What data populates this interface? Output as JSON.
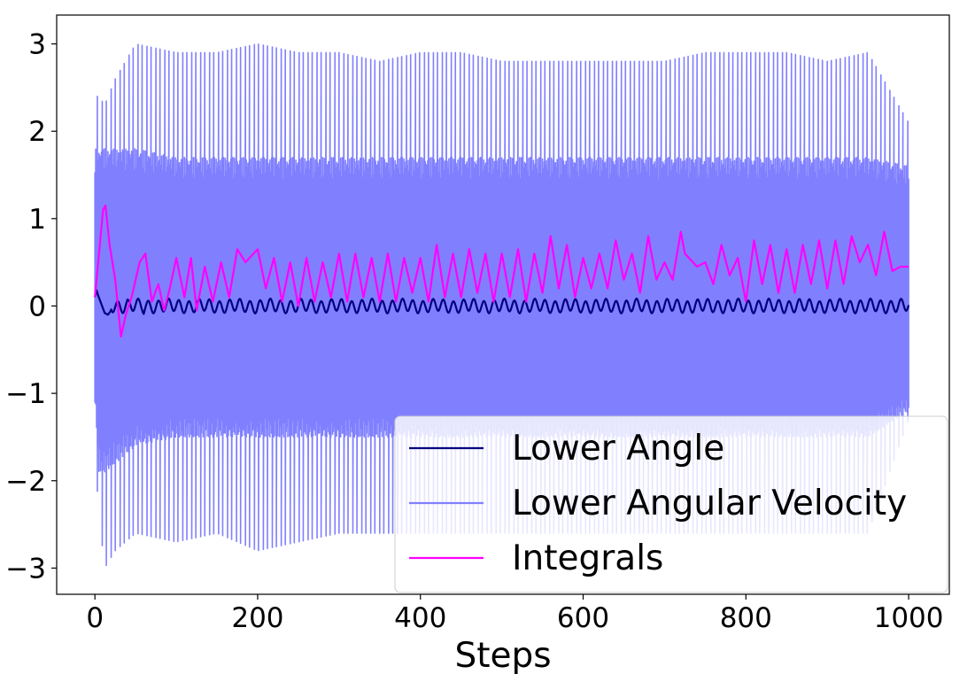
{
  "chart_data": {
    "type": "line",
    "title": "",
    "xlabel": "Steps",
    "ylabel": "",
    "xlim": [
      -47,
      1050
    ],
    "ylim": [
      -3.3,
      3.33
    ],
    "x_ticks": [
      0,
      200,
      400,
      600,
      800,
      1000
    ],
    "x_tick_labels": [
      "0",
      "200",
      "400",
      "600",
      "800",
      "1000"
    ],
    "y_ticks": [
      -3,
      -2,
      -1,
      0,
      1,
      2,
      3
    ],
    "y_tick_labels": [
      "−3",
      "−2",
      "−1",
      "0",
      "1",
      "2",
      "3"
    ],
    "grid": false,
    "legend_position": "lower-right",
    "series": [
      {
        "name": "Lower Angle",
        "color": "#000080",
        "style": "oscillation",
        "x": [
          0,
          2,
          4,
          8,
          12,
          16,
          20,
          30,
          40,
          50,
          60,
          70,
          80,
          100,
          150,
          200,
          250,
          300,
          400,
          500,
          600,
          700,
          800,
          900,
          1000
        ],
        "values": [
          0.1,
          0.18,
          0.12,
          0.02,
          -0.08,
          -0.1,
          -0.05,
          0.05,
          -0.08,
          0.06,
          -0.1,
          0.06,
          -0.08,
          0.05,
          -0.06,
          0.08,
          -0.07,
          0.07,
          -0.05,
          0.06,
          -0.06,
          0.07,
          -0.06,
          0.05,
          -0.03
        ]
      },
      {
        "name": "Lower Angular Velocity",
        "color": "#8080ff",
        "style": "dense",
        "x": [
          0,
          5,
          12,
          25,
          50,
          100,
          150,
          200,
          250,
          300,
          350,
          400,
          450,
          500,
          550,
          600,
          650,
          700,
          750,
          800,
          850,
          900,
          950,
          1000
        ],
        "max": [
          2.4,
          2.4,
          2.3,
          2.6,
          3.0,
          2.9,
          2.9,
          3.0,
          2.9,
          2.9,
          2.8,
          2.9,
          2.9,
          2.8,
          2.8,
          2.8,
          2.8,
          2.8,
          2.9,
          2.9,
          2.9,
          2.8,
          2.9,
          2.1
        ],
        "min": [
          -1.7,
          -2.4,
          -3.0,
          -2.8,
          -2.6,
          -2.7,
          -2.6,
          -2.8,
          -2.7,
          -2.6,
          -2.6,
          -2.6,
          -2.6,
          -2.6,
          -2.6,
          -2.6,
          -2.6,
          -2.6,
          -2.6,
          -2.6,
          -2.6,
          -2.6,
          -2.6,
          -1.3
        ],
        "spike_period": 11,
        "core_max": [
          1.8,
          1.8,
          1.8,
          1.8,
          1.8,
          1.7,
          1.7,
          1.7,
          1.7,
          1.7,
          1.7,
          1.7,
          1.7,
          1.7,
          1.7,
          1.7,
          1.7,
          1.7,
          1.7,
          1.7,
          1.7,
          1.7,
          1.7,
          1.6
        ],
        "core_min": [
          -1.1,
          -1.9,
          -1.9,
          -1.8,
          -1.6,
          -1.5,
          -1.5,
          -1.5,
          -1.5,
          -1.5,
          -1.5,
          -1.5,
          -1.5,
          -1.5,
          -1.5,
          -1.5,
          -1.5,
          -1.5,
          -1.5,
          -1.5,
          -1.5,
          -1.5,
          -1.5,
          -1.2
        ]
      },
      {
        "name": "Integrals",
        "color": "#ff00ff",
        "style": "line",
        "x": [
          0,
          5,
          10,
          13,
          18,
          25,
          32,
          38,
          45,
          55,
          62,
          70,
          78,
          85,
          92,
          100,
          110,
          118,
          125,
          135,
          145,
          155,
          165,
          175,
          185,
          195,
          200,
          210,
          220,
          230,
          240,
          250,
          260,
          270,
          280,
          290,
          300,
          310,
          320,
          330,
          340,
          350,
          360,
          370,
          380,
          390,
          400,
          410,
          420,
          430,
          440,
          450,
          460,
          470,
          480,
          490,
          500,
          510,
          520,
          530,
          540,
          550,
          560,
          570,
          580,
          590,
          600,
          610,
          620,
          630,
          640,
          650,
          660,
          670,
          680,
          690,
          700,
          710,
          720,
          725,
          730,
          740,
          750,
          760,
          770,
          780,
          790,
          800,
          810,
          820,
          830,
          840,
          850,
          860,
          870,
          880,
          890,
          900,
          910,
          920,
          930,
          940,
          950,
          960,
          970,
          980,
          990,
          1000
        ],
        "values": [
          0.1,
          0.6,
          1.1,
          1.15,
          0.7,
          0.3,
          -0.35,
          -0.1,
          0.1,
          0.5,
          0.6,
          0.05,
          0.25,
          -0.05,
          0.2,
          0.55,
          0.1,
          0.55,
          -0.05,
          0.45,
          0.05,
          0.5,
          0.1,
          0.65,
          0.5,
          0.6,
          0.65,
          0.2,
          0.55,
          0.05,
          0.5,
          0.0,
          0.55,
          0.05,
          0.5,
          0.1,
          0.6,
          0.05,
          0.6,
          0.1,
          0.55,
          0.05,
          0.6,
          0.05,
          0.55,
          0.15,
          0.55,
          0.05,
          0.7,
          0.1,
          0.6,
          0.1,
          0.65,
          0.15,
          0.6,
          0.05,
          0.6,
          0.1,
          0.65,
          0.05,
          0.6,
          0.15,
          0.8,
          0.2,
          0.7,
          0.1,
          0.55,
          0.2,
          0.6,
          0.2,
          0.75,
          0.3,
          0.6,
          0.15,
          0.8,
          0.3,
          0.5,
          0.3,
          0.85,
          0.6,
          0.55,
          0.45,
          0.5,
          0.25,
          0.7,
          0.35,
          0.55,
          0.05,
          0.75,
          0.25,
          0.7,
          0.15,
          0.65,
          0.15,
          0.7,
          0.25,
          0.75,
          0.2,
          0.75,
          0.25,
          0.8,
          0.5,
          0.7,
          0.35,
          0.85,
          0.4,
          0.45,
          0.45
        ]
      }
    ]
  }
}
